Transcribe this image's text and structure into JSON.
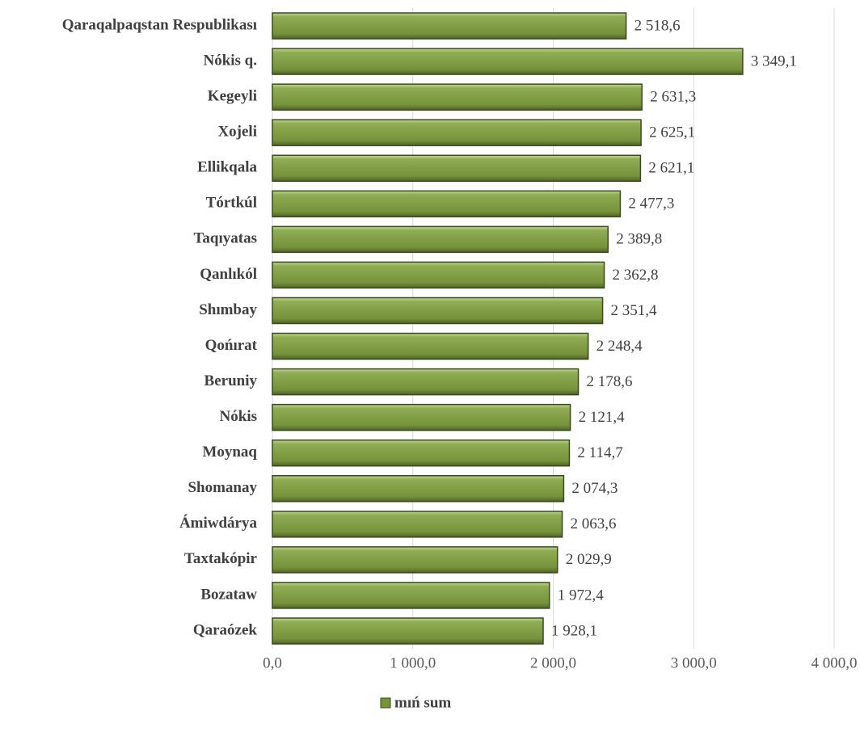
{
  "chart_data": {
    "type": "hbar",
    "categories": [
      "Qaraqalpaqstan Respublikası",
      "Nókis q.",
      "Kegeyli",
      "Xojeli",
      "Ellikqala",
      "Tórtkúl",
      "Taqıyatas",
      "Qanlıkól",
      "Shımbay",
      "Qońırat",
      "Beruniy",
      "Nókis",
      "Moynaq",
      "Shomanay",
      "Ámiwdárya",
      "Taxtakópir",
      "Bozataw",
      "Qaraózek"
    ],
    "series": [
      {
        "name": "mıń sum",
        "color": "#76923c",
        "values": [
          2518.6,
          3349.1,
          2631.3,
          2625.1,
          2621.1,
          2477.3,
          2389.8,
          2362.8,
          2351.4,
          2248.4,
          2178.6,
          2121.4,
          2114.7,
          2074.3,
          2063.6,
          2029.9,
          1972.4,
          1928.1
        ],
        "value_labels": [
          "2 518,6",
          "3 349,1",
          "2 631,3",
          "2 625,1",
          "2 621,1",
          "2 477,3",
          "2 389,8",
          "2 362,8",
          "2 351,4",
          "2 248,4",
          "2 178,6",
          "2 121,4",
          "2 114,7",
          "2 074,3",
          "2 063,6",
          "2 029,9",
          "1 972,4",
          "1 928,1"
        ]
      }
    ],
    "xlim": [
      0,
      4000
    ],
    "xticks": [
      {
        "value": 0,
        "label": "0,0"
      },
      {
        "value": 1000,
        "label": "1 000,0"
      },
      {
        "value": 2000,
        "label": "2 000,0"
      },
      {
        "value": 3000,
        "label": "3 000,0"
      },
      {
        "value": 4000,
        "label": "4 000,0"
      }
    ],
    "grid": true,
    "legend": "bottom"
  }
}
